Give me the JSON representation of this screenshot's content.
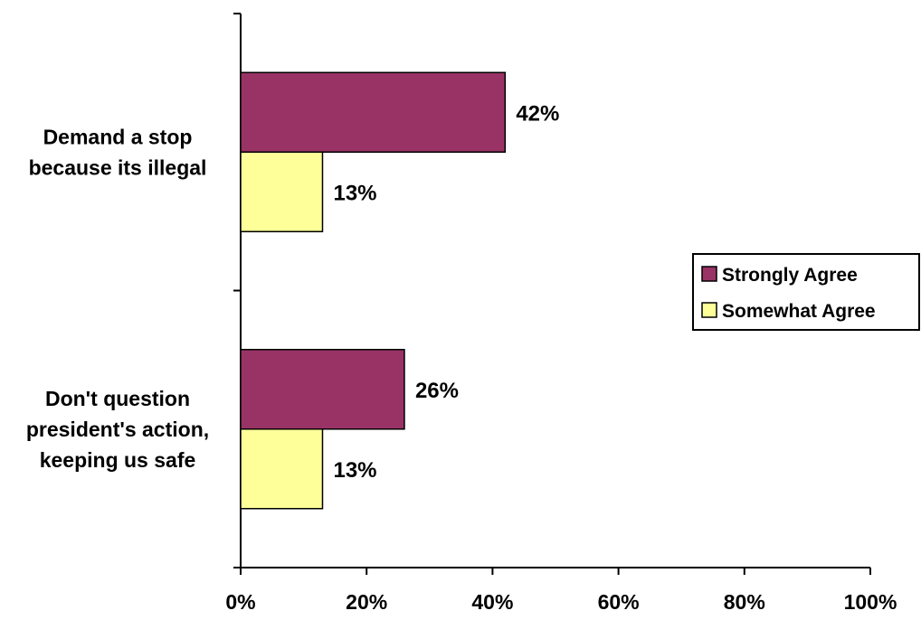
{
  "chart_data": {
    "type": "bar",
    "orientation": "horizontal",
    "title": "",
    "xlabel": "",
    "ylabel": "",
    "categories": [
      [
        "Demand a stop",
        "because its illegal"
      ],
      [
        "Don't question",
        "president's action,",
        "keeping us safe"
      ]
    ],
    "series": [
      {
        "name": "Strongly Agree",
        "color": "#993366",
        "values": [
          42,
          26
        ],
        "labels": [
          "42%",
          "26%"
        ]
      },
      {
        "name": "Somewhat Agree",
        "color": "#FFFF99",
        "values": [
          13,
          13
        ],
        "labels": [
          "13%",
          "13%"
        ]
      }
    ],
    "xlim": [
      0,
      100
    ],
    "x_ticks": [
      0,
      20,
      40,
      60,
      80,
      100
    ],
    "x_tick_labels": [
      "0%",
      "20%",
      "40%",
      "60%",
      "80%",
      "100%"
    ],
    "grid": false,
    "legend_position": "right"
  }
}
